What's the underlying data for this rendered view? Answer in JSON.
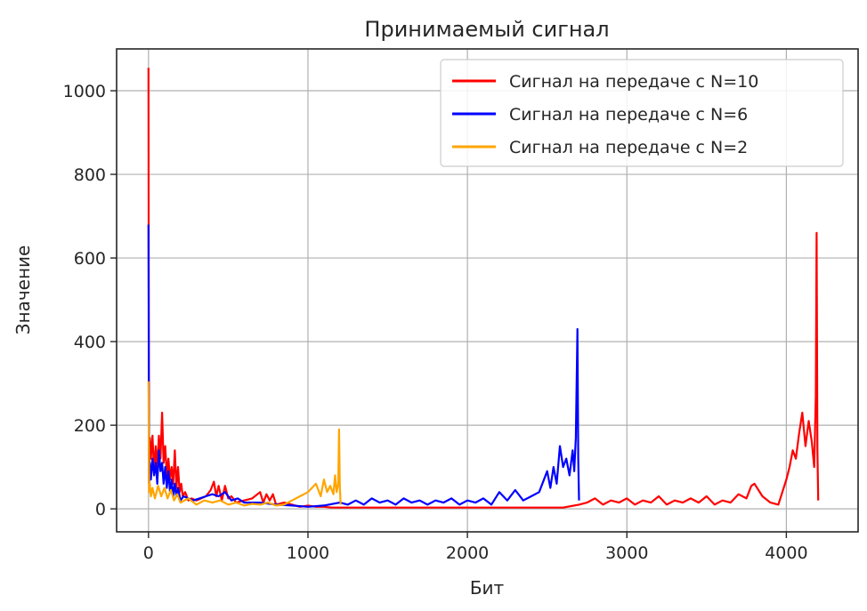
{
  "chart_data": {
    "type": "line",
    "title": "Принимаемый сигнал",
    "xlabel": "Бит",
    "ylabel": "Значение",
    "xlim": [
      -200,
      4450
    ],
    "ylim": [
      -55,
      1100
    ],
    "xticks": [
      0,
      1000,
      2000,
      3000,
      4000
    ],
    "yticks": [
      0,
      200,
      400,
      600,
      800,
      1000
    ],
    "grid": true,
    "legend_position": "top-right",
    "series": [
      {
        "name": "Сигнал на передаче с N=10",
        "color": "#ff0000",
        "x": [
          0,
          2,
          4,
          8,
          15,
          25,
          35,
          45,
          55,
          65,
          75,
          85,
          95,
          105,
          115,
          125,
          135,
          145,
          155,
          165,
          175,
          185,
          195,
          205,
          215,
          230,
          250,
          270,
          300,
          330,
          360,
          390,
          410,
          425,
          440,
          460,
          480,
          500,
          520,
          550,
          600,
          650,
          700,
          720,
          740,
          760,
          780,
          800,
          850,
          900,
          950,
          1000,
          1050,
          1100,
          1150,
          1200,
          1300,
          1400,
          1500,
          1600,
          1700,
          1800,
          1900,
          2000,
          2200,
          2400,
          2600,
          2700,
          2750,
          2800,
          2850,
          2900,
          2950,
          3000,
          3050,
          3100,
          3150,
          3200,
          3250,
          3300,
          3350,
          3400,
          3450,
          3500,
          3550,
          3600,
          3650,
          3700,
          3750,
          3780,
          3800,
          3850,
          3900,
          3950,
          4000,
          4020,
          4040,
          4060,
          4080,
          4100,
          4120,
          4140,
          4160,
          4175,
          4185,
          4190,
          4195,
          4200
        ],
        "y": [
          1055,
          300,
          60,
          170,
          120,
          175,
          90,
          150,
          100,
          175,
          120,
          230,
          110,
          150,
          80,
          120,
          70,
          100,
          60,
          140,
          50,
          100,
          40,
          60,
          30,
          40,
          20,
          25,
          20,
          25,
          30,
          45,
          65,
          30,
          55,
          20,
          55,
          25,
          30,
          15,
          20,
          25,
          40,
          15,
          35,
          20,
          35,
          10,
          15,
          10,
          5,
          8,
          5,
          5,
          3,
          3,
          3,
          3,
          3,
          3,
          3,
          3,
          3,
          3,
          3,
          3,
          3,
          10,
          15,
          25,
          10,
          20,
          15,
          25,
          10,
          20,
          15,
          30,
          10,
          20,
          15,
          25,
          15,
          30,
          10,
          20,
          15,
          35,
          25,
          55,
          60,
          30,
          15,
          10,
          70,
          100,
          140,
          120,
          180,
          230,
          150,
          210,
          160,
          100,
          270,
          660,
          140,
          20
        ]
      },
      {
        "name": "Сигнал на передаче с N=6",
        "color": "#0000ff",
        "x": [
          0,
          2,
          4,
          8,
          15,
          25,
          35,
          45,
          55,
          65,
          75,
          85,
          95,
          105,
          115,
          125,
          135,
          145,
          155,
          165,
          175,
          185,
          200,
          220,
          250,
          280,
          320,
          360,
          400,
          440,
          480,
          520,
          560,
          600,
          700,
          800,
          900,
          1000,
          1100,
          1200,
          1250,
          1300,
          1350,
          1400,
          1450,
          1500,
          1550,
          1600,
          1650,
          1700,
          1750,
          1800,
          1850,
          1900,
          1950,
          2000,
          2050,
          2100,
          2150,
          2200,
          2250,
          2300,
          2350,
          2400,
          2450,
          2500,
          2520,
          2540,
          2560,
          2580,
          2600,
          2620,
          2640,
          2660,
          2670,
          2680,
          2690,
          2695,
          2700
        ],
        "y": [
          680,
          300,
          60,
          110,
          70,
          120,
          80,
          110,
          60,
          140,
          90,
          110,
          60,
          100,
          50,
          90,
          40,
          70,
          30,
          60,
          30,
          50,
          20,
          30,
          25,
          20,
          25,
          30,
          35,
          30,
          40,
          20,
          25,
          15,
          15,
          10,
          8,
          5,
          8,
          15,
          10,
          20,
          10,
          25,
          15,
          20,
          10,
          25,
          15,
          20,
          10,
          20,
          15,
          25,
          10,
          20,
          15,
          25,
          10,
          40,
          20,
          45,
          20,
          30,
          40,
          90,
          50,
          100,
          60,
          150,
          100,
          120,
          80,
          140,
          90,
          170,
          430,
          120,
          20
        ]
      },
      {
        "name": "Сигнал на передаче с N=2",
        "color": "#ffa500",
        "x": [
          0,
          2,
          4,
          8,
          15,
          25,
          40,
          60,
          80,
          100,
          120,
          140,
          160,
          180,
          200,
          250,
          300,
          350,
          400,
          450,
          500,
          550,
          600,
          650,
          700,
          750,
          800,
          850,
          900,
          950,
          1000,
          1050,
          1080,
          1100,
          1120,
          1140,
          1160,
          1170,
          1180,
          1190,
          1195,
          1200,
          1205
        ],
        "y": [
          305,
          140,
          40,
          60,
          30,
          50,
          25,
          55,
          30,
          50,
          25,
          45,
          20,
          35,
          15,
          25,
          10,
          20,
          15,
          20,
          10,
          15,
          8,
          12,
          10,
          15,
          8,
          10,
          20,
          30,
          40,
          60,
          30,
          70,
          40,
          55,
          35,
          80,
          40,
          60,
          190,
          50,
          10
        ]
      }
    ]
  }
}
